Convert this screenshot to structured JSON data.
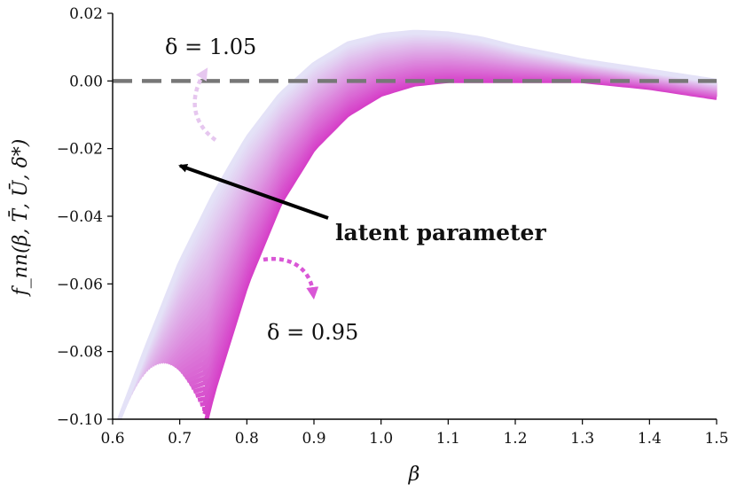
{
  "chart_data": {
    "type": "line",
    "title": "",
    "xlabel": "β",
    "ylabel": "f_nn(β, T̄, Ū, δ*)",
    "xlim": [
      0.6,
      1.5
    ],
    "ylim": [
      -0.1,
      0.02
    ],
    "xticks": [
      "0.6",
      "0.7",
      "0.8",
      "0.9",
      "1.0",
      "1.1",
      "1.2",
      "1.3",
      "1.4",
      "1.5"
    ],
    "yticks": [
      "0.02",
      "0.00",
      "−0.02",
      "−0.04",
      "−0.06",
      "−0.08",
      "−0.10"
    ],
    "reference_line": {
      "y": 0.0,
      "style": "dashed",
      "color": "#777777"
    },
    "band": {
      "description_param": "δ",
      "delta_min": 0.95,
      "delta_max": 1.05,
      "color_low_delta": "#d63fc8",
      "color_high_delta": "#e4e2f7",
      "curve_delta_1_05": {
        "x": [
          0.61,
          0.65,
          0.7,
          0.75,
          0.8,
          0.85,
          0.9,
          0.95,
          1.0,
          1.05,
          1.1,
          1.15,
          1.2,
          1.3,
          1.4,
          1.5
        ],
        "y": [
          -0.1,
          -0.079,
          -0.054,
          -0.034,
          -0.017,
          -0.004,
          0.005,
          0.011,
          0.0135,
          0.0145,
          0.014,
          0.0125,
          0.01,
          0.006,
          0.003,
          0.0
        ]
      },
      "curve_delta_0_95": {
        "x": [
          0.74,
          0.75,
          0.8,
          0.85,
          0.9,
          0.95,
          1.0,
          1.05,
          1.1,
          1.15,
          1.2,
          1.3,
          1.4,
          1.5
        ],
        "y": [
          -0.1,
          -0.092,
          -0.06,
          -0.036,
          -0.02,
          -0.01,
          -0.004,
          -0.001,
          0.0,
          0.0,
          0.0,
          0.0,
          -0.002,
          -0.005
        ]
      }
    },
    "annotations": {
      "delta_high_label": "δ = 1.05",
      "delta_low_label": "δ = 0.95",
      "arrow_label": "latent parameter"
    },
    "grid": false,
    "legend": "none"
  }
}
